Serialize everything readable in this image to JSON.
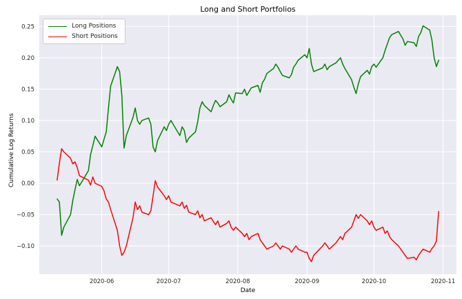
{
  "chart_data": {
    "type": "line",
    "title": "Long and Short Portfolios",
    "xlabel": "Date",
    "ylabel": "Cumulative Log Returns",
    "grid": true,
    "legend_position": "upper left",
    "plot_background": "#eaeaf2",
    "grid_color": "#ffffff",
    "x_ticks": [
      "2020-06",
      "2020-07",
      "2020-08",
      "2020-09",
      "2020-10",
      "2020-11"
    ],
    "y_ticks": [
      -0.1,
      -0.05,
      0.0,
      0.05,
      0.1,
      0.15,
      0.2,
      0.25
    ],
    "xlim": [
      "2020-05-04",
      "2020-11-07"
    ],
    "ylim": [
      -0.145,
      0.268
    ],
    "dates": [
      "2020-05-12",
      "2020-05-13",
      "2020-05-14",
      "2020-05-15",
      "2020-05-18",
      "2020-05-19",
      "2020-05-20",
      "2020-05-21",
      "2020-05-22",
      "2020-05-26",
      "2020-05-27",
      "2020-05-28",
      "2020-05-29",
      "2020-06-01",
      "2020-06-02",
      "2020-06-03",
      "2020-06-04",
      "2020-06-05",
      "2020-06-08",
      "2020-06-09",
      "2020-06-10",
      "2020-06-11",
      "2020-06-12",
      "2020-06-15",
      "2020-06-16",
      "2020-06-17",
      "2020-06-18",
      "2020-06-19",
      "2020-06-22",
      "2020-06-23",
      "2020-06-24",
      "2020-06-25",
      "2020-06-26",
      "2020-06-29",
      "2020-06-30",
      "2020-07-01",
      "2020-07-02",
      "2020-07-06",
      "2020-07-07",
      "2020-07-08",
      "2020-07-09",
      "2020-07-10",
      "2020-07-13",
      "2020-07-14",
      "2020-07-15",
      "2020-07-16",
      "2020-07-17",
      "2020-07-20",
      "2020-07-21",
      "2020-07-22",
      "2020-07-23",
      "2020-07-24",
      "2020-07-27",
      "2020-07-28",
      "2020-07-29",
      "2020-07-30",
      "2020-07-31",
      "2020-08-03",
      "2020-08-04",
      "2020-08-05",
      "2020-08-06",
      "2020-08-07",
      "2020-08-10",
      "2020-08-11",
      "2020-08-12",
      "2020-08-13",
      "2020-08-14",
      "2020-08-17",
      "2020-08-18",
      "2020-08-19",
      "2020-08-20",
      "2020-08-21",
      "2020-08-24",
      "2020-08-25",
      "2020-08-26",
      "2020-08-27",
      "2020-08-28",
      "2020-08-31",
      "2020-09-01",
      "2020-09-02",
      "2020-09-03",
      "2020-09-04",
      "2020-09-08",
      "2020-09-09",
      "2020-09-10",
      "2020-09-11",
      "2020-09-14",
      "2020-09-15",
      "2020-09-16",
      "2020-09-17",
      "2020-09-18",
      "2020-09-21",
      "2020-09-22",
      "2020-09-23",
      "2020-09-24",
      "2020-09-25",
      "2020-09-28",
      "2020-09-29",
      "2020-09-30",
      "2020-10-01",
      "2020-10-02",
      "2020-10-05",
      "2020-10-06",
      "2020-10-07",
      "2020-10-08",
      "2020-10-09",
      "2020-10-12",
      "2020-10-13",
      "2020-10-14",
      "2020-10-15",
      "2020-10-16",
      "2020-10-19",
      "2020-10-20",
      "2020-10-21",
      "2020-10-22",
      "2020-10-23",
      "2020-10-26",
      "2020-10-27",
      "2020-10-28",
      "2020-10-29",
      "2020-10-30"
    ],
    "series": [
      {
        "name": "Long Positions",
        "color": "#008000",
        "values": [
          -0.025,
          -0.03,
          -0.083,
          -0.07,
          -0.05,
          -0.028,
          -0.01,
          0.006,
          -0.004,
          0.02,
          0.046,
          0.06,
          0.075,
          0.058,
          0.07,
          0.082,
          0.12,
          0.155,
          0.186,
          0.178,
          0.14,
          0.056,
          0.076,
          0.105,
          0.12,
          0.1,
          0.094,
          0.1,
          0.104,
          0.094,
          0.058,
          0.05,
          0.068,
          0.09,
          0.084,
          0.094,
          0.1,
          0.076,
          0.09,
          0.084,
          0.065,
          0.072,
          0.082,
          0.098,
          0.12,
          0.13,
          0.124,
          0.114,
          0.124,
          0.132,
          0.128,
          0.122,
          0.13,
          0.141,
          0.134,
          0.128,
          0.144,
          0.143,
          0.15,
          0.14,
          0.146,
          0.152,
          0.156,
          0.145,
          0.16,
          0.166,
          0.175,
          0.183,
          0.19,
          0.185,
          0.178,
          0.172,
          0.168,
          0.173,
          0.185,
          0.19,
          0.196,
          0.205,
          0.2,
          0.215,
          0.19,
          0.178,
          0.184,
          0.19,
          0.181,
          0.186,
          0.192,
          0.196,
          0.2,
          0.19,
          0.183,
          0.165,
          0.153,
          0.143,
          0.158,
          0.17,
          0.18,
          0.174,
          0.186,
          0.19,
          0.185,
          0.2,
          0.212,
          0.222,
          0.232,
          0.237,
          0.242,
          0.236,
          0.23,
          0.22,
          0.226,
          0.224,
          0.218,
          0.234,
          0.24,
          0.251,
          0.244,
          0.228,
          0.2,
          0.186,
          0.196
        ]
      },
      {
        "name": "Short Positions",
        "color": "#ff0000",
        "values": [
          0.005,
          0.032,
          0.055,
          0.05,
          0.04,
          0.031,
          0.034,
          0.025,
          0.012,
          0.005,
          -0.003,
          0.01,
          0.0,
          -0.005,
          -0.012,
          -0.025,
          -0.03,
          -0.042,
          -0.075,
          -0.1,
          -0.115,
          -0.11,
          -0.1,
          -0.055,
          -0.03,
          -0.042,
          -0.036,
          -0.046,
          -0.05,
          -0.044,
          -0.02,
          0.004,
          -0.006,
          -0.02,
          -0.026,
          -0.02,
          -0.03,
          -0.036,
          -0.03,
          -0.04,
          -0.035,
          -0.046,
          -0.05,
          -0.044,
          -0.055,
          -0.05,
          -0.06,
          -0.055,
          -0.061,
          -0.066,
          -0.06,
          -0.07,
          -0.064,
          -0.06,
          -0.07,
          -0.075,
          -0.07,
          -0.08,
          -0.085,
          -0.08,
          -0.09,
          -0.085,
          -0.08,
          -0.09,
          -0.095,
          -0.1,
          -0.105,
          -0.1,
          -0.095,
          -0.1,
          -0.105,
          -0.1,
          -0.105,
          -0.11,
          -0.105,
          -0.1,
          -0.105,
          -0.11,
          -0.11,
          -0.12,
          -0.125,
          -0.115,
          -0.1,
          -0.095,
          -0.1,
          -0.105,
          -0.095,
          -0.09,
          -0.085,
          -0.09,
          -0.08,
          -0.07,
          -0.06,
          -0.05,
          -0.056,
          -0.05,
          -0.06,
          -0.066,
          -0.06,
          -0.07,
          -0.075,
          -0.07,
          -0.08,
          -0.076,
          -0.085,
          -0.09,
          -0.1,
          -0.105,
          -0.11,
          -0.115,
          -0.12,
          -0.118,
          -0.122,
          -0.115,
          -0.11,
          -0.105,
          -0.11,
          -0.104,
          -0.1,
          -0.092,
          -0.045
        ]
      }
    ]
  }
}
